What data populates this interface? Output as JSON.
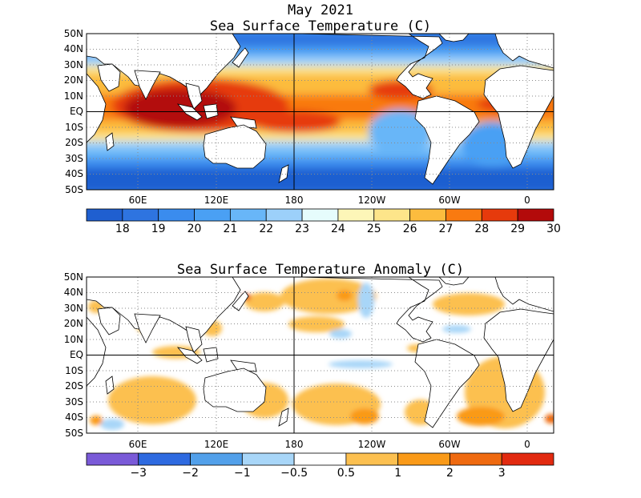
{
  "header": {
    "month": "May 2021",
    "sst_title": "Sea Surface Temperature (C)",
    "anomaly_title": "Sea Surface Temperature Anomaly (C)"
  },
  "lat_labels": [
    "50N",
    "40N",
    "30N",
    "20N",
    "10N",
    "EQ",
    "10S",
    "20S",
    "30S",
    "40S",
    "50S"
  ],
  "lon_labels": [
    "60E",
    "120E",
    "180",
    "120W",
    "60W",
    "0"
  ],
  "sst_colorbar": {
    "colors": [
      "#1f5fd0",
      "#2e74e0",
      "#3a8cee",
      "#4aa0f4",
      "#68b6f8",
      "#9cd0fa",
      "#e6fcfc",
      "#fdf6b8",
      "#fde58a",
      "#fcbc3e",
      "#f97a10",
      "#e63a0c",
      "#b30a0a"
    ],
    "labels": [
      "18",
      "19",
      "20",
      "21",
      "22",
      "23",
      "24",
      "25",
      "26",
      "27",
      "28",
      "29",
      "30"
    ]
  },
  "anomaly_colorbar": {
    "colors": [
      "#7a5ad8",
      "#2e6ae0",
      "#52a0ea",
      "#a8d6f8",
      "#ffffff",
      "#fcc050",
      "#fa9a18",
      "#ef6a10",
      "#e22a10"
    ],
    "labels": [
      "-3",
      "-2",
      "-1",
      "-0.5",
      "0.5",
      "1",
      "2",
      "3"
    ]
  }
}
